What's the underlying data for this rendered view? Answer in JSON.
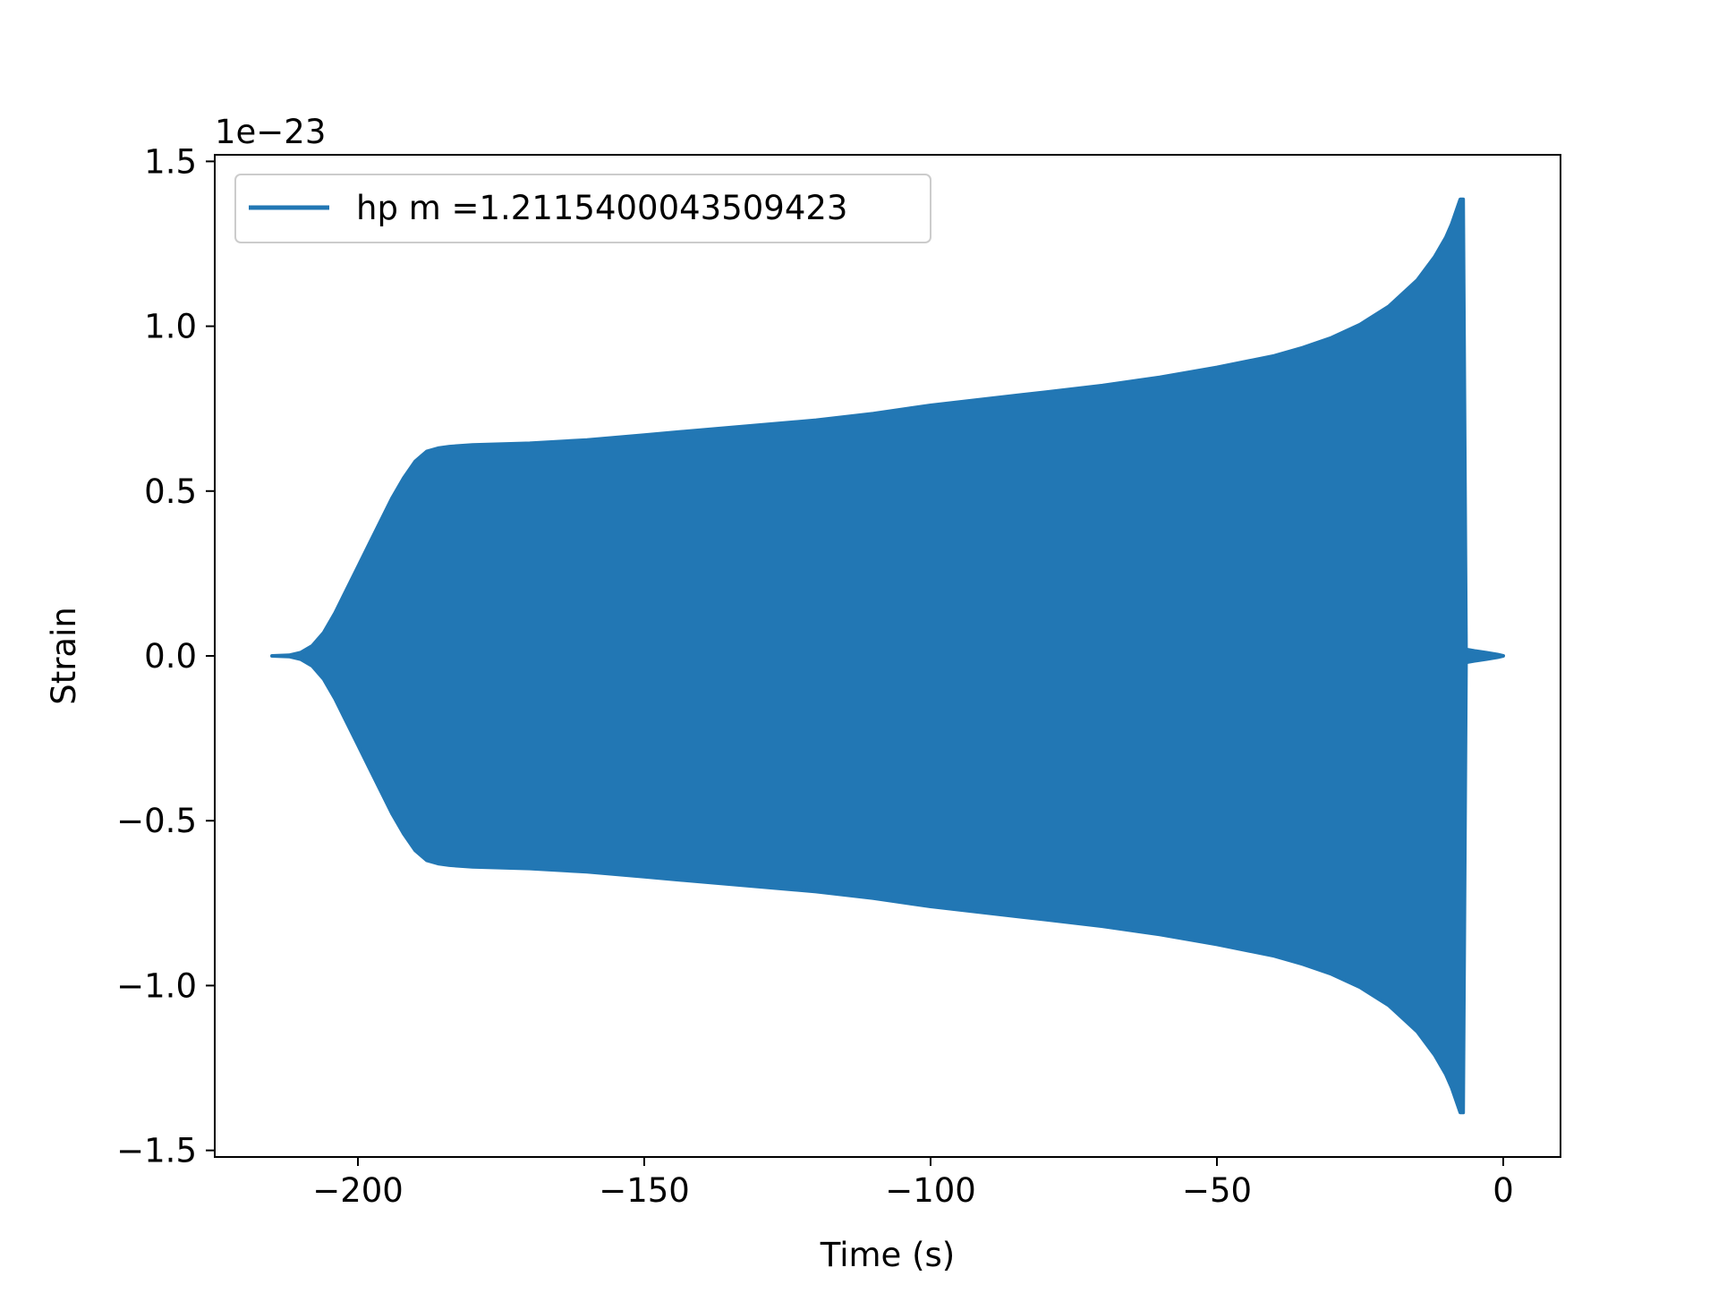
{
  "chart_data": {
    "type": "line",
    "title": "",
    "xlabel": "Time (s)",
    "ylabel": "Strain",
    "y_offset_label": "1e−23",
    "xlim": [
      -225,
      10
    ],
    "ylim": [
      -1.52,
      1.52
    ],
    "grid": false,
    "legend_position": "upper left",
    "x_ticks": [
      -200,
      -150,
      -100,
      -50,
      0
    ],
    "x_tick_labels": [
      "−200",
      "−150",
      "−100",
      "−50",
      "0"
    ],
    "y_ticks": [
      1.5,
      1.0,
      0.5,
      0.0,
      -0.5,
      -1.0,
      -1.5
    ],
    "y_tick_labels": [
      "1.5",
      "1.0",
      "0.5",
      "0.0",
      "−0.5",
      "−1.0",
      "−1.5"
    ],
    "series": [
      {
        "name": "hp m =1.2115400043509423",
        "color": "#2277b4",
        "render": "dense-oscillation-envelope",
        "envelope": {
          "x": [
            -215,
            -212,
            -210,
            -208,
            -206,
            -204,
            -202,
            -200,
            -198,
            -196,
            -194,
            -192,
            -190,
            -188,
            -186,
            -184,
            -180,
            -170,
            -160,
            -150,
            -140,
            -130,
            -120,
            -110,
            -100,
            -90,
            -80,
            -70,
            -60,
            -50,
            -40,
            -35,
            -30,
            -25,
            -20,
            -15,
            -12,
            -10,
            -9,
            -8,
            -7.5,
            -7,
            -6.5,
            -6,
            -5,
            -3,
            -1,
            0
          ],
          "upper": [
            0.0,
            0.002,
            0.01,
            0.03,
            0.07,
            0.13,
            0.2,
            0.27,
            0.34,
            0.41,
            0.48,
            0.54,
            0.59,
            0.62,
            0.63,
            0.635,
            0.64,
            0.645,
            0.655,
            0.67,
            0.685,
            0.7,
            0.715,
            0.735,
            0.76,
            0.78,
            0.8,
            0.82,
            0.845,
            0.875,
            0.91,
            0.935,
            0.965,
            1.005,
            1.06,
            1.14,
            1.21,
            1.27,
            1.31,
            1.36,
            1.385,
            1.385,
            0.02,
            0.018,
            0.015,
            0.01,
            0.004,
            0.0
          ],
          "lower": [
            0.0,
            -0.002,
            -0.01,
            -0.03,
            -0.07,
            -0.13,
            -0.2,
            -0.27,
            -0.34,
            -0.41,
            -0.48,
            -0.54,
            -0.59,
            -0.62,
            -0.63,
            -0.635,
            -0.64,
            -0.645,
            -0.655,
            -0.67,
            -0.685,
            -0.7,
            -0.715,
            -0.735,
            -0.76,
            -0.78,
            -0.8,
            -0.82,
            -0.845,
            -0.875,
            -0.91,
            -0.935,
            -0.965,
            -1.005,
            -1.06,
            -1.14,
            -1.21,
            -1.27,
            -1.31,
            -1.36,
            -1.385,
            -1.385,
            -0.02,
            -0.018,
            -0.015,
            -0.01,
            -0.004,
            0.0
          ]
        }
      }
    ]
  }
}
